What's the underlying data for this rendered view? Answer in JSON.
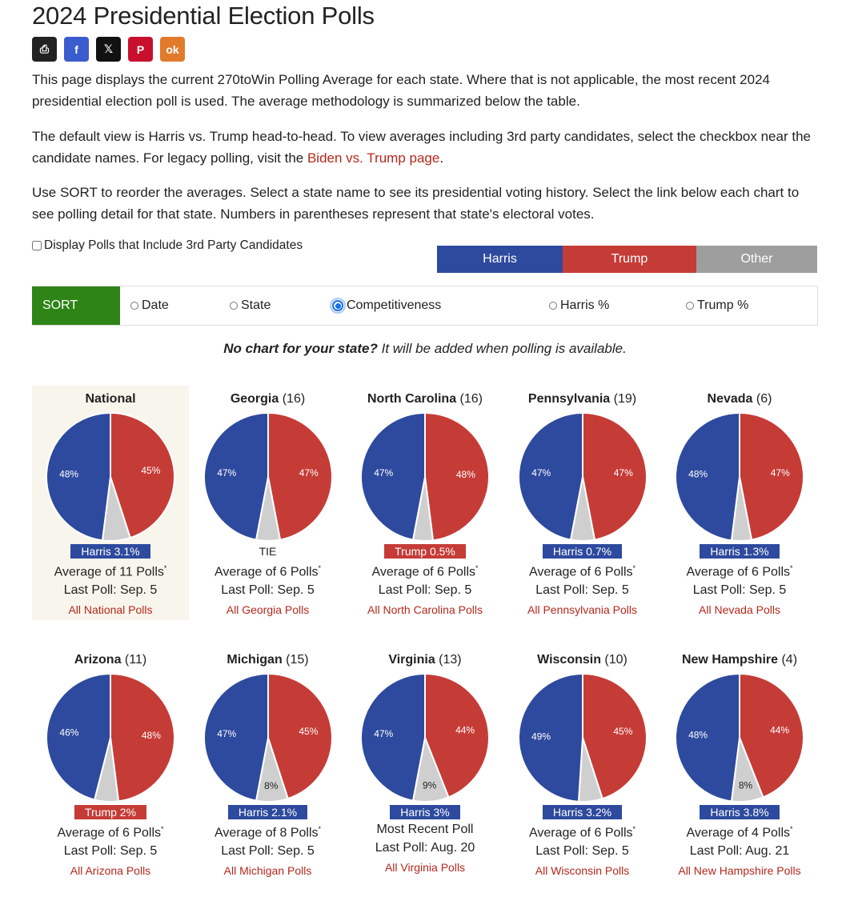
{
  "page": {
    "title": "2024 Presidential Election Polls",
    "share_buttons": [
      {
        "name": "print-icon",
        "glyph": "⎙",
        "color": "#222222"
      },
      {
        "name": "facebook-icon",
        "glyph": "f",
        "color": "#3b5ccf"
      },
      {
        "name": "x-icon",
        "glyph": "𝕏",
        "color": "#111111"
      },
      {
        "name": "pinterest-icon",
        "glyph": "P",
        "color": "#c8102e"
      },
      {
        "name": "odnoklassniki-icon",
        "glyph": "ok",
        "color": "#e27a2b"
      }
    ],
    "para1": "This page displays the current 270toWin Polling Average for each state. Where that is not applicable, the most recent 2024 presidential election poll is used. The average methodology is summarized below the table.",
    "para2_before": "The default view is Harris vs. Trump head-to-head. To view averages including 3rd party candidates, select the checkbox near the candidate names. For legacy polling, visit the ",
    "para2_link": "Biden vs. Trump page",
    "para2_after": ".",
    "para3": "Use SORT to reorder the averages. Select a state name to see its presidential voting history. Select the link below each chart to see polling detail for that state. Numbers in parentheses represent that state's electoral votes.",
    "checkbox_label": "Display Polls that Include 3rd Party Candidates",
    "legend": [
      {
        "label": "Harris",
        "color": "#2e4a9e"
      },
      {
        "label": "Trump",
        "color": "#c53c37"
      },
      {
        "label": "Other",
        "color": "#9e9e9e"
      }
    ],
    "sort": {
      "label": "SORT",
      "options": [
        "Date",
        "State",
        "Competitiveness",
        "Harris %",
        "Trump %"
      ],
      "selected": "Competitiveness"
    },
    "note_bold": "No chart for your state?",
    "note_rest": " It will be added when polling is available."
  },
  "colors": {
    "harris": "#2e4a9e",
    "trump": "#c53c37",
    "other": "#cfcfcf"
  },
  "states": [
    {
      "name": "National",
      "ev": "",
      "harris": 48,
      "trump": 45,
      "leader": "Harris 3.1%",
      "lead": "harris",
      "avg": "Average of 11 Polls",
      "star": true,
      "last": "Last Poll: Sep. 5",
      "link": "All National Polls",
      "highlight": true,
      "other_label": ""
    },
    {
      "name": "Georgia",
      "ev": "(16)",
      "harris": 47,
      "trump": 47,
      "leader": "TIE",
      "lead": "tie",
      "avg": "Average of 6 Polls",
      "star": true,
      "last": "Last Poll: Sep. 5",
      "link": "All Georgia Polls",
      "highlight": false,
      "other_label": ""
    },
    {
      "name": "North Carolina",
      "ev": "(16)",
      "harris": 47,
      "trump": 48,
      "leader": "Trump 0.5%",
      "lead": "trump",
      "avg": "Average of 6 Polls",
      "star": true,
      "last": "Last Poll: Sep. 5",
      "link": "All North Carolina Polls",
      "highlight": false,
      "other_label": ""
    },
    {
      "name": "Pennsylvania",
      "ev": "(19)",
      "harris": 47,
      "trump": 47,
      "leader": "Harris 0.7%",
      "lead": "harris",
      "avg": "Average of 6 Polls",
      "star": true,
      "last": "Last Poll: Sep. 5",
      "link": "All Pennsylvania Polls",
      "highlight": false,
      "other_label": ""
    },
    {
      "name": "Nevada",
      "ev": "(6)",
      "harris": 48,
      "trump": 47,
      "leader": "Harris 1.3%",
      "lead": "harris",
      "avg": "Average of 6 Polls",
      "star": true,
      "last": "Last Poll: Sep. 5",
      "link": "All Nevada Polls",
      "highlight": false,
      "other_label": ""
    },
    {
      "name": "Arizona",
      "ev": "(11)",
      "harris": 46,
      "trump": 48,
      "leader": "Trump 2%",
      "lead": "trump",
      "avg": "Average of 6 Polls",
      "star": true,
      "last": "Last Poll: Sep. 5",
      "link": "All Arizona Polls",
      "highlight": false,
      "other_label": ""
    },
    {
      "name": "Michigan",
      "ev": "(15)",
      "harris": 47,
      "trump": 45,
      "leader": "Harris 2.1%",
      "lead": "harris",
      "avg": "Average of 8 Polls",
      "star": true,
      "last": "Last Poll: Sep. 5",
      "link": "All Michigan Polls",
      "highlight": false,
      "other_label": "8%"
    },
    {
      "name": "Virginia",
      "ev": "(13)",
      "harris": 47,
      "trump": 44,
      "leader": "Harris 3%",
      "lead": "harris",
      "avg": "Most Recent Poll",
      "star": false,
      "last": "Last Poll: Aug. 20",
      "link": "All Virginia Polls",
      "highlight": false,
      "other_label": "9%"
    },
    {
      "name": "Wisconsin",
      "ev": "(10)",
      "harris": 49,
      "trump": 45,
      "leader": "Harris 3.2%",
      "lead": "harris",
      "avg": "Average of 6 Polls",
      "star": true,
      "last": "Last Poll: Sep. 5",
      "link": "All Wisconsin Polls",
      "highlight": false,
      "other_label": ""
    },
    {
      "name": "New Hampshire",
      "ev": "(4)",
      "harris": 48,
      "trump": 44,
      "leader": "Harris 3.8%",
      "lead": "harris",
      "avg": "Average of 4 Polls",
      "star": true,
      "last": "Last Poll: Aug. 21",
      "link": "All New Hampshire Polls",
      "highlight": false,
      "other_label": "8%"
    }
  ]
}
